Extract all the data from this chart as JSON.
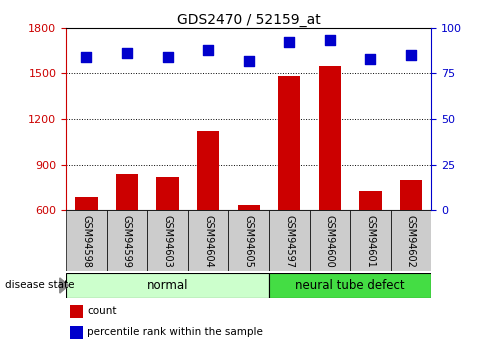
{
  "title": "GDS2470 / 52159_at",
  "samples": [
    "GSM94598",
    "GSM94599",
    "GSM94603",
    "GSM94604",
    "GSM94605",
    "GSM94597",
    "GSM94600",
    "GSM94601",
    "GSM94602"
  ],
  "counts": [
    690,
    840,
    820,
    1120,
    635,
    1480,
    1550,
    730,
    800
  ],
  "percentiles": [
    84,
    86,
    84,
    88,
    82,
    92,
    93,
    83,
    85
  ],
  "groups": [
    {
      "label": "normal",
      "start": 0,
      "end": 5,
      "color": "#ccffcc"
    },
    {
      "label": "neural tube defect",
      "start": 5,
      "end": 9,
      "color": "#44dd44"
    }
  ],
  "ylim_left": [
    600,
    1800
  ],
  "ylim_right": [
    0,
    100
  ],
  "yticks_left": [
    600,
    900,
    1200,
    1500,
    1800
  ],
  "yticks_right": [
    0,
    25,
    50,
    75,
    100
  ],
  "bar_color": "#cc0000",
  "dot_color": "#0000cc",
  "left_axis_color": "#cc0000",
  "right_axis_color": "#0000cc",
  "legend_items": [
    {
      "label": "count",
      "color": "#cc0000"
    },
    {
      "label": "percentile rank within the sample",
      "color": "#0000cc"
    }
  ],
  "bar_width": 0.55,
  "dot_size": 55,
  "normal_color": "#ccffcc",
  "ntd_color": "#44dd44"
}
